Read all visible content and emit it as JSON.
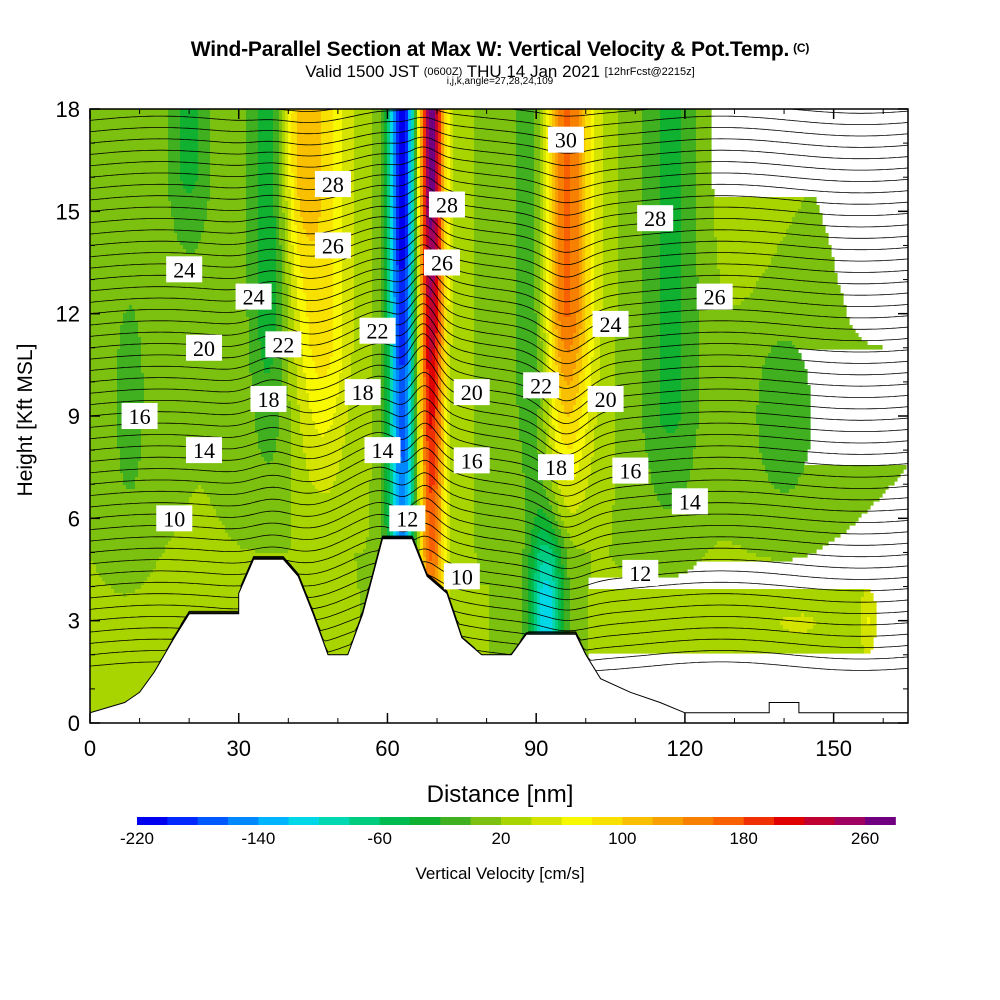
{
  "title": {
    "main": "Wind-Parallel Section at Max W: Vertical Velocity & Pot.Temp.",
    "copyright": "(C)",
    "valid_prefix": "Valid 1500 JST",
    "valid_utc": "(0600Z)",
    "valid_date": "THU 14 Jan 2021",
    "forecast_info": "[12hrFcst@2215z]",
    "meta": "i,j,k,angle=27,28,24,109"
  },
  "colorbar": {
    "title": "Vertical Velocity [cm/s]",
    "min": -220,
    "max": 260,
    "step": 20,
    "tick_labels": [
      "-220",
      "-140",
      "-60",
      "20",
      "100",
      "180",
      "260"
    ],
    "colors": [
      "#0000f0",
      "#0028ff",
      "#0058ff",
      "#0088ff",
      "#00b4ff",
      "#00d8e8",
      "#00d8b4",
      "#00cc80",
      "#00bc50",
      "#10b030",
      "#40b020",
      "#7cc010",
      "#a8d400",
      "#d4e400",
      "#f8f800",
      "#f8e000",
      "#f8c000",
      "#f8a000",
      "#f88000",
      "#f86000",
      "#f03000",
      "#e00000",
      "#c00030",
      "#a00060",
      "#700080"
    ]
  },
  "chart_data": {
    "type": "heatmap",
    "title": "Wind-Parallel Section at Max W: Vertical Velocity & Pot.Temp.",
    "xlabel": "Distance [nm]",
    "ylabel": "Height [Kft MSL]",
    "xlim": [
      0,
      165
    ],
    "ylim": [
      0,
      18
    ],
    "xticks": [
      0,
      30,
      60,
      90,
      120,
      150
    ],
    "yticks": [
      0,
      3,
      6,
      9,
      12,
      15,
      18
    ],
    "field": "Vertical Velocity [cm/s]",
    "updraft_max_x_nm": 69,
    "downdraft_min_x_nm": 63,
    "terrain_kft": [
      [
        0,
        0.3
      ],
      [
        7,
        0.6
      ],
      [
        10,
        0.9
      ],
      [
        13,
        1.5
      ],
      [
        17,
        2.5
      ],
      [
        20,
        3.2
      ],
      [
        30,
        3.2
      ],
      [
        30,
        3.8
      ],
      [
        33,
        4.8
      ],
      [
        39,
        4.8
      ],
      [
        42,
        4.3
      ],
      [
        45,
        3.2
      ],
      [
        48,
        2.0
      ],
      [
        52,
        2.0
      ],
      [
        55,
        3.2
      ],
      [
        59,
        5.4
      ],
      [
        65,
        5.4
      ],
      [
        68,
        4.3
      ],
      [
        72,
        3.8
      ],
      [
        75,
        2.5
      ],
      [
        79,
        2.0
      ],
      [
        85,
        2.0
      ],
      [
        88,
        2.6
      ],
      [
        98,
        2.6
      ],
      [
        100,
        2.0
      ],
      [
        103,
        1.3
      ],
      [
        109,
        0.9
      ],
      [
        115,
        0.6
      ],
      [
        120,
        0.3
      ],
      [
        137,
        0.3
      ],
      [
        137,
        0.6
      ],
      [
        143,
        0.6
      ],
      [
        143,
        0.3
      ],
      [
        165,
        0.3
      ]
    ],
    "contour_field": "Potential Temperature",
    "contour_labels": [
      {
        "value": "10",
        "x": 17,
        "y": 6.0
      },
      {
        "value": "10",
        "x": 75,
        "y": 4.3
      },
      {
        "value": "12",
        "x": 64,
        "y": 6.0
      },
      {
        "value": "12",
        "x": 111,
        "y": 4.4
      },
      {
        "value": "14",
        "x": 23,
        "y": 8.0
      },
      {
        "value": "14",
        "x": 59,
        "y": 8.0
      },
      {
        "value": "14",
        "x": 121,
        "y": 6.5
      },
      {
        "value": "16",
        "x": 10,
        "y": 9.0
      },
      {
        "value": "16",
        "x": 77,
        "y": 7.7
      },
      {
        "value": "16",
        "x": 109,
        "y": 7.4
      },
      {
        "value": "18",
        "x": 36,
        "y": 9.5
      },
      {
        "value": "18",
        "x": 55,
        "y": 9.7
      },
      {
        "value": "18",
        "x": 94,
        "y": 7.5
      },
      {
        "value": "20",
        "x": 23,
        "y": 11.0
      },
      {
        "value": "20",
        "x": 77,
        "y": 9.7
      },
      {
        "value": "20",
        "x": 104,
        "y": 9.5
      },
      {
        "value": "22",
        "x": 39,
        "y": 11.1
      },
      {
        "value": "22",
        "x": 58,
        "y": 11.5
      },
      {
        "value": "22",
        "x": 91,
        "y": 9.9
      },
      {
        "value": "24",
        "x": 19,
        "y": 13.3
      },
      {
        "value": "24",
        "x": 33,
        "y": 12.5
      },
      {
        "value": "24",
        "x": 105,
        "y": 11.7
      },
      {
        "value": "26",
        "x": 49,
        "y": 14.0
      },
      {
        "value": "26",
        "x": 71,
        "y": 13.5
      },
      {
        "value": "26",
        "x": 126,
        "y": 12.5
      },
      {
        "value": "28",
        "x": 49,
        "y": 15.8
      },
      {
        "value": "28",
        "x": 72,
        "y": 15.2
      },
      {
        "value": "28",
        "x": 114,
        "y": 14.8
      },
      {
        "value": "30",
        "x": 96,
        "y": 17.1
      }
    ]
  }
}
